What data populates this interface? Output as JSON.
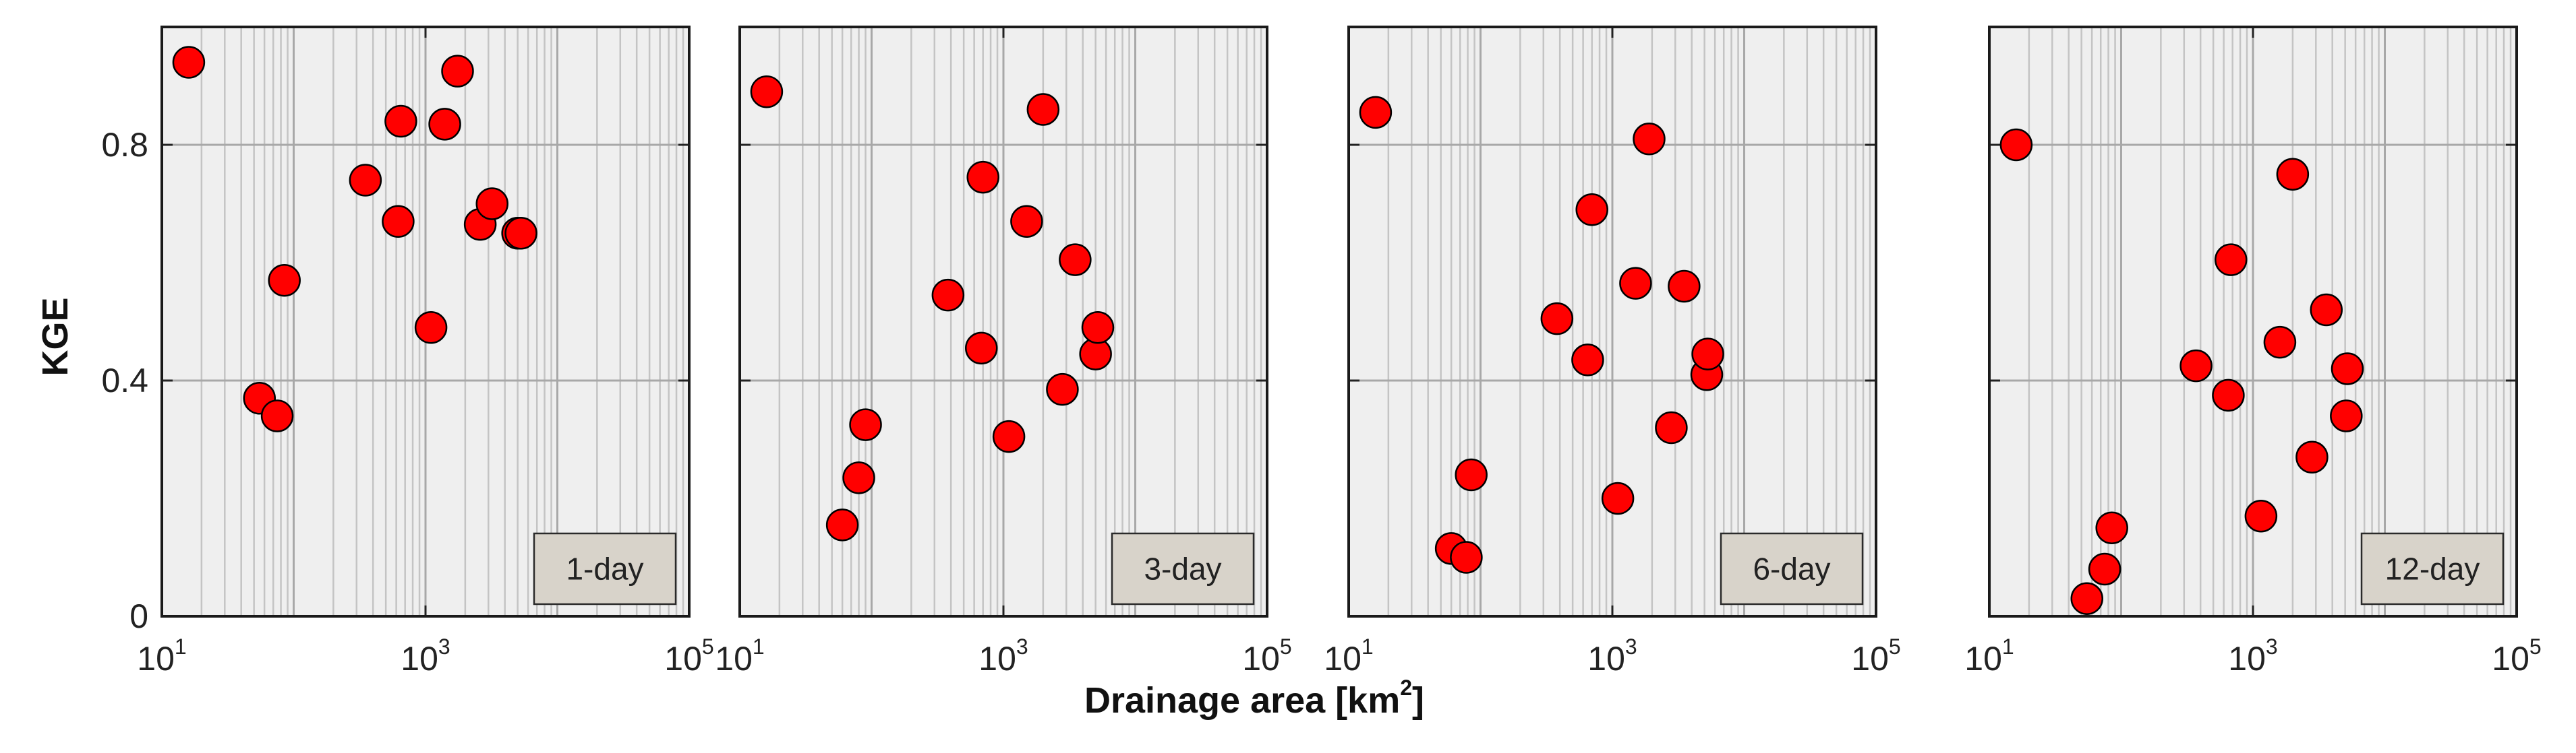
{
  "chart_data": {
    "type": "scatter",
    "xlabel": "Drainage area [km",
    "xlabel_sup": "2",
    "xlabel_end": "]",
    "ylabel": "KGE",
    "x_scale": "log",
    "xlim": [
      10,
      100000
    ],
    "ylim": [
      0,
      1
    ],
    "y_ticks": [
      0,
      0.4,
      0.8
    ],
    "y_tick_labels": [
      "0",
      "0.4",
      "0.8"
    ],
    "x_ticks": [
      10,
      1000,
      100000
    ],
    "x_tick_labels": [
      {
        "base": "10",
        "exp": "1"
      },
      {
        "base": "10",
        "exp": "3"
      },
      {
        "base": "10",
        "exp": "5"
      }
    ],
    "grid": true,
    "marker_color": "#ff0000",
    "marker_edge": "#000000",
    "background": "#efefef",
    "label_box_color": "#d8d3ca",
    "panels": [
      {
        "label": "1-day",
        "points": [
          {
            "x": 16,
            "y": 0.94
          },
          {
            "x": 55,
            "y": 0.37
          },
          {
            "x": 75,
            "y": 0.34
          },
          {
            "x": 85,
            "y": 0.57
          },
          {
            "x": 350,
            "y": 0.74
          },
          {
            "x": 620,
            "y": 0.67
          },
          {
            "x": 650,
            "y": 0.84
          },
          {
            "x": 1100,
            "y": 0.49
          },
          {
            "x": 1400,
            "y": 0.835
          },
          {
            "x": 1750,
            "y": 0.925
          },
          {
            "x": 2600,
            "y": 0.665
          },
          {
            "x": 3200,
            "y": 0.7
          },
          {
            "x": 5000,
            "y": 0.65
          },
          {
            "x": 5300,
            "y": 0.65
          }
        ]
      },
      {
        "label": "3-day",
        "points": [
          {
            "x": 16,
            "y": 0.89
          },
          {
            "x": 60,
            "y": 0.155
          },
          {
            "x": 80,
            "y": 0.235
          },
          {
            "x": 90,
            "y": 0.325
          },
          {
            "x": 380,
            "y": 0.545
          },
          {
            "x": 680,
            "y": 0.455
          },
          {
            "x": 700,
            "y": 0.745
          },
          {
            "x": 1100,
            "y": 0.305
          },
          {
            "x": 1500,
            "y": 0.67
          },
          {
            "x": 2000,
            "y": 0.86
          },
          {
            "x": 2800,
            "y": 0.385
          },
          {
            "x": 3500,
            "y": 0.605
          },
          {
            "x": 5000,
            "y": 0.445
          },
          {
            "x": 5200,
            "y": 0.49
          }
        ]
      },
      {
        "label": "6-day",
        "points": [
          {
            "x": 16,
            "y": 0.855
          },
          {
            "x": 60,
            "y": 0.115
          },
          {
            "x": 78,
            "y": 0.1
          },
          {
            "x": 85,
            "y": 0.24
          },
          {
            "x": 380,
            "y": 0.505
          },
          {
            "x": 650,
            "y": 0.435
          },
          {
            "x": 700,
            "y": 0.69
          },
          {
            "x": 1100,
            "y": 0.2
          },
          {
            "x": 1500,
            "y": 0.565
          },
          {
            "x": 1900,
            "y": 0.81
          },
          {
            "x": 2800,
            "y": 0.32
          },
          {
            "x": 3500,
            "y": 0.56
          },
          {
            "x": 5200,
            "y": 0.41
          },
          {
            "x": 5300,
            "y": 0.445
          }
        ]
      },
      {
        "label": "12-day",
        "points": [
          {
            "x": 16,
            "y": 0.8
          },
          {
            "x": 55,
            "y": 0.03
          },
          {
            "x": 75,
            "y": 0.08
          },
          {
            "x": 85,
            "y": 0.15
          },
          {
            "x": 370,
            "y": 0.425
          },
          {
            "x": 650,
            "y": 0.375
          },
          {
            "x": 680,
            "y": 0.605
          },
          {
            "x": 1150,
            "y": 0.17
          },
          {
            "x": 1600,
            "y": 0.465
          },
          {
            "x": 2000,
            "y": 0.75
          },
          {
            "x": 2800,
            "y": 0.27
          },
          {
            "x": 3600,
            "y": 0.52
          },
          {
            "x": 5100,
            "y": 0.34
          },
          {
            "x": 5200,
            "y": 0.42
          }
        ]
      }
    ]
  }
}
